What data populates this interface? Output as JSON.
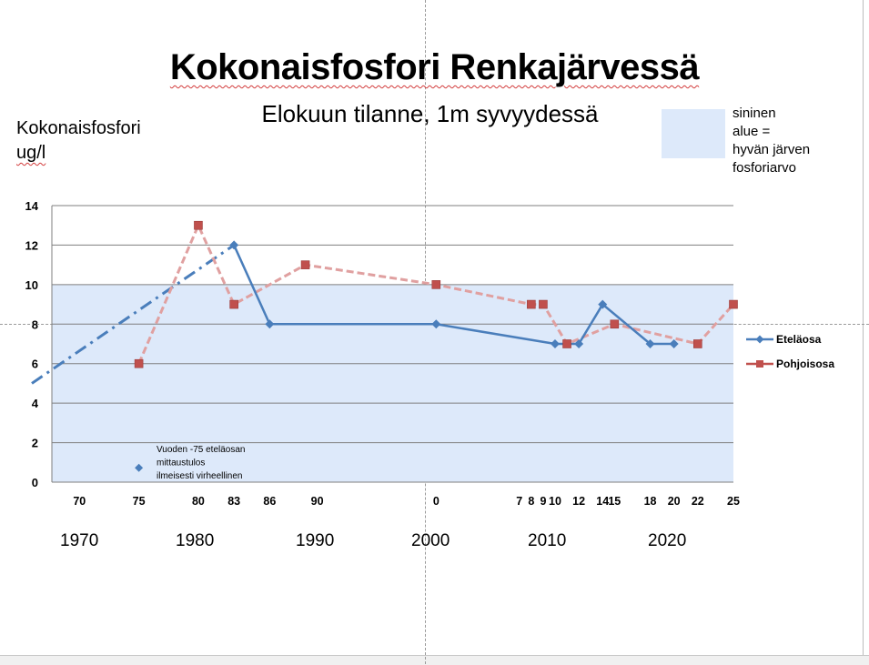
{
  "title": "Kokonaisfosfori Renkajärvessä",
  "subtitle": "Elokuun tilanne, 1m syvyydessä",
  "ylabel_line1": "Kokonaisfosfori",
  "ylabel_line2": "ug/l",
  "note_lines": [
    "sininen",
    "alue =",
    "hyvän järven",
    "fosforiarvo"
  ],
  "annotation_lines": [
    "Vuoden -75 eteläosan",
    "mittaustulos",
    "ilmeisesti virheellinen"
  ],
  "decades": [
    "1970",
    "1980",
    "1990",
    "2000",
    "2010",
    "2020"
  ],
  "colors": {
    "south": "#4a7ebb",
    "north": "#c0504d",
    "north_line": "#e0a0a0",
    "good_band": "#dde9fa",
    "grid": "#7f7f7f"
  },
  "chart_data": {
    "type": "line",
    "title": "Kokonaisfosfori Renkajärvessä",
    "subtitle": "Elokuun tilanne, 1m syvyydessä",
    "ylabel": "Kokonaisfosfori ug/l",
    "ylim": [
      0,
      14
    ],
    "yticks": [
      0,
      2,
      4,
      6,
      8,
      10,
      12,
      14
    ],
    "xlim": [
      1966,
      2025
    ],
    "xticks": [
      {
        "x": 1970,
        "label": "70"
      },
      {
        "x": 1975,
        "label": "75"
      },
      {
        "x": 1980,
        "label": "80"
      },
      {
        "x": 1983,
        "label": "83"
      },
      {
        "x": 1986,
        "label": "86"
      },
      {
        "x": 1990,
        "label": "90"
      },
      {
        "x": 2000,
        "label": "0"
      },
      {
        "x": 2007,
        "label": "7"
      },
      {
        "x": 2008,
        "label": "8"
      },
      {
        "x": 2009,
        "label": "9"
      },
      {
        "x": 2010,
        "label": "10"
      },
      {
        "x": 2012,
        "label": "12"
      },
      {
        "x": 2014,
        "label": "14"
      },
      {
        "x": 2015,
        "label": "15"
      },
      {
        "x": 2018,
        "label": "18"
      },
      {
        "x": 2020,
        "label": "20"
      },
      {
        "x": 2022,
        "label": "22"
      },
      {
        "x": 2025,
        "label": "25"
      }
    ],
    "good_band": [
      0,
      10
    ],
    "grid": true,
    "legend_position": "right",
    "series": [
      {
        "name": "Eteläosa",
        "x": [
          1983,
          1986,
          2000,
          2010,
          2012,
          2014,
          2018,
          2020
        ],
        "y": [
          12,
          8,
          8,
          7,
          7,
          9,
          7,
          7
        ]
      },
      {
        "name": "Pohjoisosa",
        "x": [
          1975,
          1980,
          1983,
          1989,
          2000,
          2008,
          2009,
          2011,
          2015,
          2022,
          2025
        ],
        "y": [
          6,
          13,
          9,
          11,
          10,
          9,
          9,
          7,
          8,
          7,
          9
        ]
      }
    ],
    "trend_line": {
      "x": [
        1966,
        1983
      ],
      "y": [
        5,
        12
      ]
    },
    "annotation_point": {
      "x": 1975,
      "y": 1
    }
  }
}
